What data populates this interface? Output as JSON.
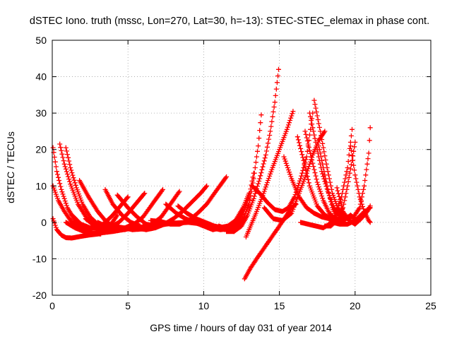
{
  "chart_data": {
    "type": "scatter",
    "title": "dSTEC Iono. truth (mssc, Lon=270, Lat=30, h=-13): STEC-STEC_elemax in phase cont.",
    "xlabel": "GPS time / hours of day 031 of year 2014",
    "ylabel": "dSTEC  / TECUs",
    "xlim": [
      0,
      25
    ],
    "ylim": [
      -20,
      50
    ],
    "xticks": [
      0,
      5,
      10,
      15,
      20,
      25
    ],
    "yticks": [
      -20,
      -10,
      0,
      10,
      20,
      30,
      40,
      50
    ],
    "grid": true,
    "marker": "plus",
    "color": "#ff0000",
    "series": [
      {
        "x": [
          0.05,
          0.3,
          0.6,
          0.9,
          1.3,
          1.8,
          2.4,
          3.0
        ],
        "y": [
          1,
          -2,
          -3.5,
          -4.2,
          -4.3,
          -3.9,
          -3.5,
          -3.2
        ]
      },
      {
        "x": [
          0.05,
          0.4,
          0.8,
          1.3,
          1.9,
          2.5,
          3.0
        ],
        "y": [
          10,
          6,
          3,
          0,
          -1.5,
          -2.8,
          -3
        ]
      },
      {
        "x": [
          0.05,
          0.3,
          0.6,
          1.0,
          1.5,
          2.0,
          2.6,
          3.2
        ],
        "y": [
          20.5,
          14,
          9,
          4,
          0.5,
          -1.5,
          -3,
          -3.2
        ]
      },
      {
        "x": [
          0.5,
          0.8,
          1.2,
          1.7,
          2.3,
          2.9,
          3.4
        ],
        "y": [
          21.5,
          16,
          10.5,
          5,
          1,
          -1.5,
          -2.5
        ]
      },
      {
        "x": [
          0.9,
          1.2,
          1.6,
          2.0,
          2.5,
          3.0,
          3.6
        ],
        "y": [
          20.5,
          15,
          9.5,
          5,
          1.5,
          -0.5,
          -2
        ]
      },
      {
        "x": [
          1.8,
          2.4,
          3.0,
          3.6,
          4.2,
          4.8
        ],
        "y": [
          11.5,
          7,
          3,
          0,
          -1.5,
          -2
        ]
      },
      {
        "x": [
          3.5,
          4.0,
          4.6,
          5.2,
          5.8
        ],
        "y": [
          9,
          5,
          2,
          0,
          -1
        ]
      },
      {
        "x": [
          4.3,
          5.0,
          5.6,
          6.2,
          6.8
        ],
        "y": [
          7.5,
          4,
          1.5,
          -0.5,
          -1
        ]
      },
      {
        "x": [
          0.9,
          1.5,
          2.1,
          2.7,
          3.2,
          3.8,
          4.3
        ],
        "y": [
          0,
          -1.5,
          -2.5,
          -3,
          -2.5,
          -1,
          2
        ]
      },
      {
        "x": [
          1.3,
          1.9,
          2.5,
          3.0,
          3.5,
          4.0,
          4.6,
          5.0
        ],
        "y": [
          2,
          -0.5,
          -1.5,
          -1.5,
          0,
          2,
          5,
          7
        ]
      },
      {
        "x": [
          2.2,
          2.8,
          3.3,
          3.8,
          4.4,
          5.0,
          5.6,
          6.1
        ],
        "y": [
          1,
          -1,
          -2,
          -1.5,
          0,
          2.5,
          5.5,
          8
        ]
      },
      {
        "x": [
          3.0,
          3.6,
          4.2,
          4.8,
          5.4,
          6.0,
          6.6,
          7.3
        ],
        "y": [
          0,
          -1.2,
          -1.8,
          -1.5,
          -0.5,
          1.5,
          5,
          9
        ]
      },
      {
        "x": [
          4.0,
          4.7,
          5.3,
          6.0,
          6.6,
          7.2,
          7.8,
          8.4
        ],
        "y": [
          -1,
          -1.5,
          -2,
          -1.8,
          -0.5,
          1.5,
          5,
          8.5
        ]
      },
      {
        "x": [
          5.5,
          6.2,
          6.8,
          7.4,
          8.0,
          8.6,
          9.2,
          9.8,
          10.2
        ],
        "y": [
          -1.5,
          -2,
          -1.5,
          -0.5,
          1,
          3,
          5.5,
          8,
          10
        ]
      },
      {
        "x": [
          3.0,
          4.0,
          5.0,
          6.0,
          7.0,
          8.0,
          9.0,
          10.0,
          11.0,
          12.0
        ],
        "y": [
          -3,
          -2.5,
          -1.8,
          -1.2,
          -0.8,
          -0.2,
          0,
          -0.5,
          -1.5,
          -2.5
        ]
      },
      {
        "x": [
          6.5,
          7.2,
          7.8,
          8.4,
          9.0,
          9.6,
          10.2,
          10.8,
          11.5
        ],
        "y": [
          0.5,
          0.2,
          -0.5,
          -0.5,
          0.5,
          2.5,
          5,
          8.5,
          12.5
        ]
      },
      {
        "x": [
          7.5,
          8.2,
          8.8,
          9.4,
          10.0,
          10.6,
          11.2
        ],
        "y": [
          5,
          2.5,
          1,
          0,
          -1,
          -2,
          -1.5
        ]
      },
      {
        "x": [
          8.3,
          8.9,
          9.5,
          10.1,
          10.7,
          11.3,
          11.9,
          12.5
        ],
        "y": [
          4.5,
          2.5,
          1,
          0,
          -1,
          -1.5,
          -0.8,
          0.5
        ]
      },
      {
        "x": [
          9.8,
          10.4,
          11.0,
          11.6,
          12.1,
          12.6,
          13.0
        ],
        "y": [
          0,
          -1,
          -1.5,
          -1,
          0.5,
          4,
          8
        ]
      },
      {
        "x": [
          10.5,
          11.1,
          11.6,
          12.1,
          12.6,
          13.0,
          13.3
        ],
        "y": [
          -1.5,
          -2,
          -1.8,
          -0.5,
          2.5,
          7,
          13.5
        ]
      },
      {
        "x": [
          11.0,
          11.6,
          12.1,
          12.6,
          13.0,
          13.3,
          13.6,
          13.8
        ],
        "y": [
          -1,
          -2,
          -1.5,
          1,
          5,
          12,
          21,
          29.5
        ]
      },
      {
        "x": [
          11.5,
          12.0,
          12.5,
          12.9,
          13.3,
          13.7,
          14.1,
          14.4,
          14.7,
          14.95
        ],
        "y": [
          -2.5,
          -2.5,
          -1,
          2,
          6.5,
          12,
          18.5,
          25,
          33,
          42
        ]
      },
      {
        "x": [
          12.8,
          13.1,
          13.5,
          14.0,
          14.5,
          15.0,
          15.5,
          15.9
        ],
        "y": [
          -4,
          -1,
          3,
          8.5,
          14.5,
          20,
          25.5,
          30.5
        ]
      },
      {
        "x": [
          12.7,
          13.1,
          13.5,
          14.0,
          14.5,
          15.0,
          15.4,
          15.8,
          16.1
        ],
        "y": [
          -15.5,
          -12.5,
          -10,
          -7,
          -4,
          -1,
          1.5,
          4,
          5
        ]
      },
      {
        "x": [
          14.0,
          14.6,
          15.2,
          15.8,
          16.3,
          16.8,
          17.2,
          17.6,
          18.0
        ],
        "y": [
          4,
          1,
          0.5,
          2.5,
          8,
          13.5,
          18.5,
          22.5,
          25
        ]
      },
      {
        "x": [
          13.2,
          13.7,
          14.2,
          14.7,
          15.2,
          15.6,
          16.0,
          16.4,
          16.8,
          17.2
        ],
        "y": [
          10,
          8,
          5.5,
          3.5,
          3,
          4,
          7,
          12,
          18,
          30
        ]
      },
      {
        "x": [
          15.3,
          15.8,
          16.3,
          16.8,
          17.3,
          17.8,
          18.3
        ],
        "y": [
          18,
          12,
          7,
          4,
          2.5,
          1.5,
          1
        ]
      },
      {
        "x": [
          16.2,
          16.6,
          17.0,
          17.5,
          18.0,
          18.4,
          18.8
        ],
        "y": [
          23.5,
          17,
          10,
          4.5,
          2,
          1,
          0.5
        ]
      },
      {
        "x": [
          16.7,
          17.1,
          17.5,
          17.9,
          18.3,
          18.7,
          19.1,
          19.5
        ],
        "y": [
          25,
          18,
          11,
          6,
          2.5,
          1,
          0.5,
          1.5
        ]
      },
      {
        "x": [
          17.0,
          17.4,
          17.8,
          18.2,
          18.6,
          19.0,
          19.4
        ],
        "y": [
          30,
          22,
          14,
          8.5,
          4,
          1.5,
          1
        ]
      },
      {
        "x": [
          17.3,
          17.7,
          18.1,
          18.5,
          18.9,
          19.3,
          19.7
        ],
        "y": [
          33.5,
          25,
          16,
          8,
          3.5,
          1.5,
          1.5
        ]
      },
      {
        "x": [
          17.6,
          17.9,
          18.2,
          18.5,
          18.8,
          19.1,
          19.4,
          19.7,
          20.0
        ],
        "y": [
          21,
          15,
          9,
          4,
          1,
          0,
          1,
          2,
          1
        ]
      },
      {
        "x": [
          16.4,
          16.9,
          17.4,
          17.9,
          18.3,
          18.7,
          19.1,
          19.5,
          19.8
        ],
        "y": [
          0,
          -0.5,
          -1,
          -1.5,
          -0.5,
          2,
          7,
          15,
          25.5
        ]
      },
      {
        "x": [
          18.0,
          18.4,
          18.8,
          19.2,
          19.5,
          19.8,
          20.0
        ],
        "y": [
          -1,
          -1,
          0.5,
          4,
          10,
          17,
          22
        ]
      },
      {
        "x": [
          18.8,
          19.2,
          19.6,
          20.0,
          20.4,
          20.8,
          21.0
        ],
        "y": [
          9.5,
          3,
          0.5,
          -0.5,
          1,
          3,
          4.5
        ]
      },
      {
        "x": [
          19.7,
          20.0,
          20.3,
          20.6,
          20.9,
          21.0
        ],
        "y": [
          21,
          13,
          7,
          3,
          0.5,
          0
        ]
      },
      {
        "x": [
          19.5,
          19.9,
          20.3,
          20.6,
          20.9,
          21.0
        ],
        "y": [
          1.5,
          1.5,
          4,
          10,
          19,
          26
        ]
      },
      {
        "x": [
          18.5,
          19.0,
          19.5,
          20.0,
          20.5,
          21.0
        ],
        "y": [
          0,
          -0.5,
          -0.5,
          0.5,
          2.5,
          4
        ]
      }
    ]
  }
}
